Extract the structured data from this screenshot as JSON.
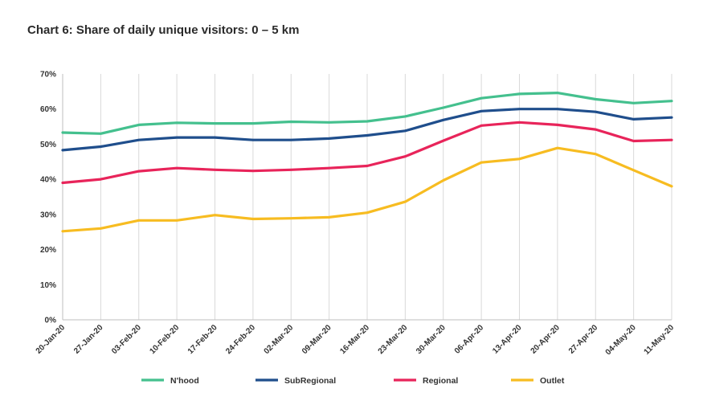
{
  "chart_data": {
    "type": "line",
    "title": "Chart 6: Share of daily unique visitors: 0 – 5 km",
    "categories": [
      "20-Jan-20",
      "27-Jan-20",
      "03-Feb-20",
      "10-Feb-20",
      "17-Feb-20",
      "24-Feb-20",
      "02-Mar-20",
      "09-Mar-20",
      "16-Mar-20",
      "23-Mar-20",
      "30-Mar-20",
      "06-Apr-20",
      "13-Apr-20",
      "20-Apr-20",
      "27-Apr-20",
      "04-May-20",
      "11-May-20"
    ],
    "series": [
      {
        "name": "N'hood",
        "color": "#44c08e",
        "values": [
          53.3,
          53.0,
          55.5,
          56.1,
          55.9,
          55.9,
          56.4,
          56.2,
          56.5,
          57.9,
          60.4,
          63.1,
          64.3,
          64.6,
          62.8,
          61.7,
          62.3
        ]
      },
      {
        "name": "SubRegional",
        "color": "#1f4e8c",
        "values": [
          48.3,
          49.3,
          51.2,
          51.9,
          51.9,
          51.2,
          51.2,
          51.6,
          52.5,
          53.8,
          56.9,
          59.4,
          60.0,
          60.0,
          59.2,
          57.1,
          57.6
        ]
      },
      {
        "name": "Regional",
        "color": "#e8245a",
        "values": [
          39.0,
          40.0,
          42.3,
          43.2,
          42.7,
          42.4,
          42.7,
          43.2,
          43.8,
          46.5,
          51.0,
          55.3,
          56.2,
          55.5,
          54.2,
          50.9,
          51.2
        ]
      },
      {
        "name": "Outlet",
        "color": "#f7bc21",
        "values": [
          25.2,
          26.0,
          28.3,
          28.3,
          29.8,
          28.7,
          28.9,
          29.2,
          30.5,
          33.6,
          39.7,
          44.8,
          45.8,
          48.9,
          47.2,
          42.6,
          38.0
        ]
      }
    ],
    "y_ticks": [
      "0%",
      "10%",
      "20%",
      "30%",
      "40%",
      "50%",
      "60%",
      "70%"
    ],
    "ylim": [
      0,
      70
    ],
    "grid": "vertical",
    "legend_position": "bottom"
  }
}
